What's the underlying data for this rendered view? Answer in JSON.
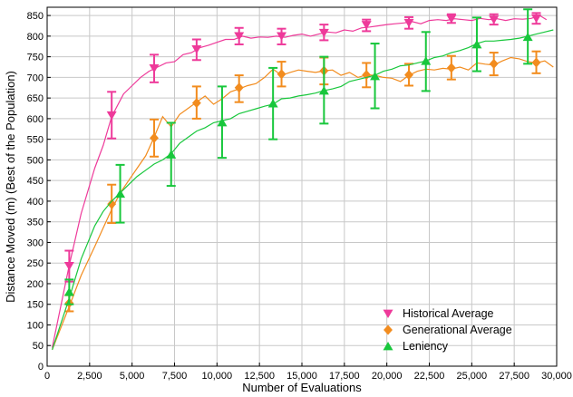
{
  "chart_data": {
    "type": "line",
    "xlabel": "Number of Evaluations",
    "ylabel": "Distance Moved (m) (Best of the Population)",
    "xlim": [
      0,
      30000
    ],
    "ylim": [
      0,
      870
    ],
    "xticks": [
      0,
      2500,
      5000,
      7500,
      10000,
      12500,
      15000,
      17500,
      20000,
      22500,
      25000,
      27500,
      30000
    ],
    "xtick_labels": [
      "0",
      "2,500",
      "5,000",
      "7,500",
      "10,000",
      "12,500",
      "15,000",
      "17,500",
      "20,000",
      "22,500",
      "25,000",
      "27,500",
      "30,000"
    ],
    "yticks": [
      0,
      50,
      100,
      150,
      200,
      250,
      300,
      350,
      400,
      450,
      500,
      550,
      600,
      650,
      700,
      750,
      800,
      850
    ],
    "ytick_labels": [
      "0",
      "50",
      "100",
      "150",
      "200",
      "250",
      "300",
      "350",
      "400",
      "450",
      "500",
      "550",
      "600",
      "650",
      "700",
      "750",
      "800",
      "850"
    ],
    "grid": true,
    "legend_position": "bottom-right",
    "series": [
      {
        "name": "Historical Average",
        "color": "#ee3a9a",
        "marker": "triangle-down",
        "line": [
          [
            300,
            45
          ],
          [
            1300,
            245
          ],
          [
            2000,
            370
          ],
          [
            2800,
            480
          ],
          [
            3300,
            535
          ],
          [
            3800,
            605
          ],
          [
            4500,
            660
          ],
          [
            5000,
            680
          ],
          [
            5500,
            700
          ],
          [
            6000,
            715
          ],
          [
            6500,
            725
          ],
          [
            7000,
            735
          ],
          [
            7500,
            738
          ],
          [
            8000,
            755
          ],
          [
            8500,
            760
          ],
          [
            9000,
            772
          ],
          [
            9500,
            778
          ],
          [
            10000,
            785
          ],
          [
            10500,
            792
          ],
          [
            11000,
            792
          ],
          [
            11500,
            800
          ],
          [
            12000,
            795
          ],
          [
            12500,
            798
          ],
          [
            13000,
            797
          ],
          [
            13500,
            800
          ],
          [
            14000,
            797
          ],
          [
            14500,
            802
          ],
          [
            15000,
            805
          ],
          [
            15500,
            800
          ],
          [
            16000,
            805
          ],
          [
            16500,
            810
          ],
          [
            17000,
            808
          ],
          [
            17500,
            815
          ],
          [
            18000,
            812
          ],
          [
            18500,
            820
          ],
          [
            19000,
            822
          ],
          [
            19500,
            825
          ],
          [
            20000,
            828
          ],
          [
            20500,
            830
          ],
          [
            21000,
            832
          ],
          [
            21500,
            835
          ],
          [
            22000,
            830
          ],
          [
            22500,
            838
          ],
          [
            23000,
            840
          ],
          [
            23500,
            838
          ],
          [
            24000,
            842
          ],
          [
            24500,
            840
          ],
          [
            25000,
            838
          ],
          [
            25500,
            843
          ],
          [
            26000,
            840
          ],
          [
            26500,
            842
          ],
          [
            27000,
            838
          ],
          [
            27500,
            842
          ],
          [
            28000,
            841
          ],
          [
            28500,
            843
          ],
          [
            29000,
            850
          ],
          [
            29400,
            840
          ]
        ],
        "points": [
          {
            "x": 1300,
            "y": 243,
            "err": [
              205,
              280
            ]
          },
          {
            "x": 3800,
            "y": 608,
            "err": [
              552,
              665
            ]
          },
          {
            "x": 6300,
            "y": 722,
            "err": [
              688,
              755
            ]
          },
          {
            "x": 8800,
            "y": 768,
            "err": [
              742,
              792
            ]
          },
          {
            "x": 11300,
            "y": 800,
            "err": [
              780,
              820
            ]
          },
          {
            "x": 13800,
            "y": 800,
            "err": [
              780,
              818
            ]
          },
          {
            "x": 16300,
            "y": 808,
            "err": [
              790,
              828
            ]
          },
          {
            "x": 18800,
            "y": 827,
            "err": [
              812,
              840
            ]
          },
          {
            "x": 21300,
            "y": 832,
            "err": [
              818,
              846
            ]
          },
          {
            "x": 23800,
            "y": 842,
            "err": [
              832,
              853
            ]
          },
          {
            "x": 26300,
            "y": 840,
            "err": [
              828,
              853
            ]
          },
          {
            "x": 28800,
            "y": 843,
            "err": [
              830,
              856
            ]
          }
        ]
      },
      {
        "name": "Generational Average",
        "color": "#f28c1e",
        "marker": "diamond",
        "line": [
          [
            300,
            40
          ],
          [
            1300,
            145
          ],
          [
            2000,
            220
          ],
          [
            2800,
            290
          ],
          [
            3300,
            335
          ],
          [
            3800,
            380
          ],
          [
            4300,
            420
          ],
          [
            4800,
            450
          ],
          [
            5300,
            480
          ],
          [
            5800,
            510
          ],
          [
            6300,
            555
          ],
          [
            6800,
            605
          ],
          [
            7300,
            580
          ],
          [
            7800,
            610
          ],
          [
            8300,
            625
          ],
          [
            8800,
            640
          ],
          [
            9300,
            655
          ],
          [
            9800,
            635
          ],
          [
            10300,
            648
          ],
          [
            10800,
            665
          ],
          [
            11300,
            672
          ],
          [
            11800,
            680
          ],
          [
            12300,
            685
          ],
          [
            12800,
            700
          ],
          [
            13300,
            720
          ],
          [
            13800,
            705
          ],
          [
            14300,
            712
          ],
          [
            14800,
            718
          ],
          [
            15300,
            715
          ],
          [
            15800,
            712
          ],
          [
            16300,
            716
          ],
          [
            16800,
            718
          ],
          [
            17300,
            705
          ],
          [
            17800,
            712
          ],
          [
            18300,
            700
          ],
          [
            18800,
            706
          ],
          [
            19300,
            705
          ],
          [
            19800,
            700
          ],
          [
            20300,
            698
          ],
          [
            20800,
            690
          ],
          [
            21300,
            705
          ],
          [
            21800,
            715
          ],
          [
            22300,
            720
          ],
          [
            22800,
            718
          ],
          [
            23300,
            722
          ],
          [
            23800,
            720
          ],
          [
            24300,
            725
          ],
          [
            24800,
            718
          ],
          [
            25300,
            735
          ],
          [
            25800,
            732
          ],
          [
            26300,
            730
          ],
          [
            26800,
            740
          ],
          [
            27300,
            748
          ],
          [
            27800,
            745
          ],
          [
            28300,
            738
          ],
          [
            28800,
            735
          ],
          [
            29300,
            740
          ],
          [
            29800,
            725
          ]
        ],
        "points": [
          {
            "x": 1300,
            "y": 153,
            "err": [
              133,
              172
            ]
          },
          {
            "x": 3800,
            "y": 393,
            "err": [
              347,
              440
            ]
          },
          {
            "x": 6300,
            "y": 553,
            "err": [
              508,
              598
            ]
          },
          {
            "x": 8800,
            "y": 638,
            "err": [
              600,
              678
            ]
          },
          {
            "x": 11300,
            "y": 675,
            "err": [
              640,
              705
            ]
          },
          {
            "x": 13800,
            "y": 708,
            "err": [
              678,
              738
            ]
          },
          {
            "x": 16300,
            "y": 716,
            "err": [
              683,
              748
            ]
          },
          {
            "x": 18800,
            "y": 706,
            "err": [
              676,
              735
            ]
          },
          {
            "x": 21300,
            "y": 706,
            "err": [
              680,
              733
            ]
          },
          {
            "x": 23800,
            "y": 723,
            "err": [
              695,
              752
            ]
          },
          {
            "x": 26300,
            "y": 733,
            "err": [
              705,
              760
            ]
          },
          {
            "x": 28800,
            "y": 736,
            "err": [
              710,
              763
            ]
          }
        ]
      },
      {
        "name": "Leniency",
        "color": "#18c73c",
        "marker": "triangle-up",
        "line": [
          [
            300,
            40
          ],
          [
            1300,
            165
          ],
          [
            2000,
            260
          ],
          [
            2800,
            340
          ],
          [
            3300,
            375
          ],
          [
            3800,
            400
          ],
          [
            4300,
            420
          ],
          [
            4800,
            440
          ],
          [
            5300,
            460
          ],
          [
            5800,
            475
          ],
          [
            6300,
            490
          ],
          [
            6800,
            500
          ],
          [
            7300,
            515
          ],
          [
            7800,
            540
          ],
          [
            8300,
            555
          ],
          [
            8800,
            570
          ],
          [
            9300,
            578
          ],
          [
            9800,
            590
          ],
          [
            10300,
            595
          ],
          [
            10800,
            600
          ],
          [
            11300,
            612
          ],
          [
            11800,
            618
          ],
          [
            12300,
            624
          ],
          [
            12800,
            630
          ],
          [
            13300,
            635
          ],
          [
            13800,
            648
          ],
          [
            14300,
            650
          ],
          [
            14800,
            655
          ],
          [
            15300,
            658
          ],
          [
            15800,
            662
          ],
          [
            16300,
            668
          ],
          [
            16800,
            672
          ],
          [
            17300,
            678
          ],
          [
            17800,
            690
          ],
          [
            18300,
            695
          ],
          [
            18800,
            700
          ],
          [
            19300,
            705
          ],
          [
            19800,
            715
          ],
          [
            20300,
            720
          ],
          [
            20800,
            728
          ],
          [
            21300,
            730
          ],
          [
            21800,
            735
          ],
          [
            22300,
            740
          ],
          [
            22800,
            748
          ],
          [
            23300,
            752
          ],
          [
            23800,
            760
          ],
          [
            24300,
            765
          ],
          [
            24800,
            772
          ],
          [
            25300,
            782
          ],
          [
            25800,
            788
          ],
          [
            26300,
            788
          ],
          [
            26800,
            790
          ],
          [
            27300,
            792
          ],
          [
            27800,
            795
          ],
          [
            28300,
            800
          ],
          [
            28800,
            805
          ],
          [
            29300,
            810
          ],
          [
            29800,
            815
          ]
        ],
        "points": [
          {
            "x": 1300,
            "y": 180,
            "err": [
              150,
              210
            ]
          },
          {
            "x": 4300,
            "y": 418,
            "err": [
              348,
              488
            ]
          },
          {
            "x": 7300,
            "y": 513,
            "err": [
              437,
              590
            ]
          },
          {
            "x": 10300,
            "y": 591,
            "err": [
              505,
              678
            ]
          },
          {
            "x": 13300,
            "y": 637,
            "err": [
              550,
              723
            ]
          },
          {
            "x": 16300,
            "y": 668,
            "err": [
              588,
              750
            ]
          },
          {
            "x": 19300,
            "y": 703,
            "err": [
              625,
              782
            ]
          },
          {
            "x": 22300,
            "y": 740,
            "err": [
              667,
              810
            ]
          },
          {
            "x": 25300,
            "y": 780,
            "err": [
              715,
              845
            ]
          },
          {
            "x": 28300,
            "y": 798,
            "err": [
              733,
              865
            ]
          }
        ]
      }
    ]
  }
}
